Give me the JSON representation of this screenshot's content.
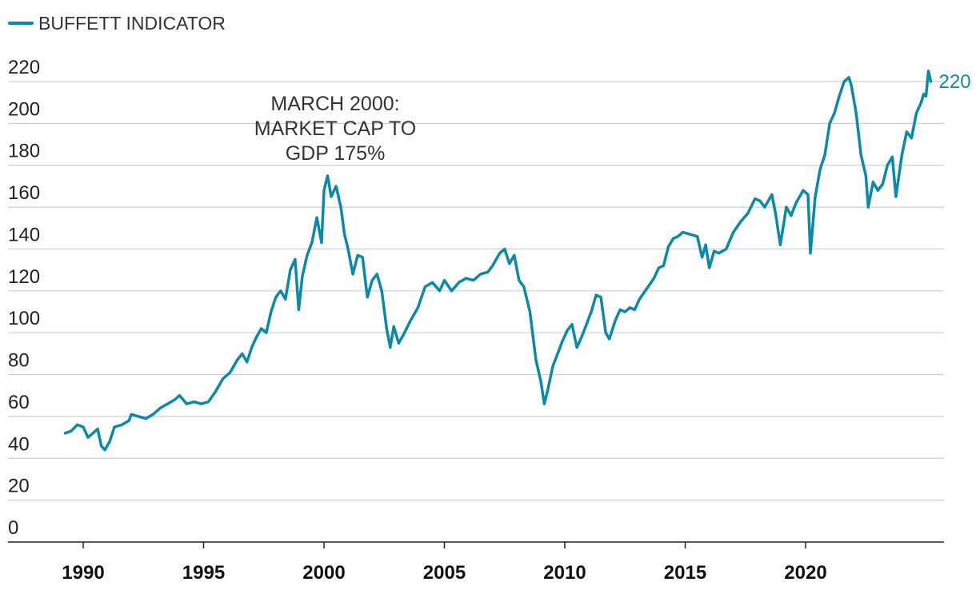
{
  "chart_data": {
    "type": "line",
    "title": "",
    "xlabel": "",
    "ylabel": "",
    "xlim": [
      1988.5,
      2025.8
    ],
    "ylim": [
      0,
      220
    ],
    "y_ticks": [
      0,
      20,
      40,
      60,
      80,
      100,
      120,
      140,
      160,
      180,
      200,
      220
    ],
    "x_ticks": [
      1990,
      1995,
      2000,
      2005,
      2010,
      2015,
      2020
    ],
    "grid": true,
    "legend": "top-left",
    "series": [
      {
        "name": "BUFFETT INDICATOR",
        "color": "#0a8aa8",
        "last_value_label": "220",
        "points": [
          [
            1989.25,
            52
          ],
          [
            1989.5,
            53
          ],
          [
            1989.75,
            56
          ],
          [
            1990.0,
            55
          ],
          [
            1990.2,
            50
          ],
          [
            1990.4,
            52
          ],
          [
            1990.6,
            54
          ],
          [
            1990.75,
            46
          ],
          [
            1990.9,
            44
          ],
          [
            1991.1,
            48
          ],
          [
            1991.3,
            55
          ],
          [
            1991.6,
            56
          ],
          [
            1991.9,
            58
          ],
          [
            1992.0,
            61
          ],
          [
            1992.3,
            60
          ],
          [
            1992.6,
            59
          ],
          [
            1992.9,
            61
          ],
          [
            1993.2,
            64
          ],
          [
            1993.5,
            66
          ],
          [
            1993.8,
            68
          ],
          [
            1994.0,
            70
          ],
          [
            1994.3,
            66
          ],
          [
            1994.6,
            67
          ],
          [
            1994.9,
            66
          ],
          [
            1995.2,
            67
          ],
          [
            1995.5,
            72
          ],
          [
            1995.8,
            78
          ],
          [
            1996.1,
            81
          ],
          [
            1996.4,
            87
          ],
          [
            1996.6,
            90
          ],
          [
            1996.8,
            86
          ],
          [
            1997.0,
            93
          ],
          [
            1997.2,
            98
          ],
          [
            1997.4,
            102
          ],
          [
            1997.6,
            100
          ],
          [
            1997.8,
            110
          ],
          [
            1998.0,
            117
          ],
          [
            1998.2,
            120
          ],
          [
            1998.4,
            116
          ],
          [
            1998.6,
            130
          ],
          [
            1998.8,
            135
          ],
          [
            1998.95,
            111
          ],
          [
            1999.1,
            127
          ],
          [
            1999.3,
            137
          ],
          [
            1999.5,
            143
          ],
          [
            1999.7,
            155
          ],
          [
            1999.9,
            143
          ],
          [
            2000.0,
            168
          ],
          [
            2000.15,
            175
          ],
          [
            2000.3,
            165
          ],
          [
            2000.5,
            170
          ],
          [
            2000.7,
            160
          ],
          [
            2000.85,
            147
          ],
          [
            2001.0,
            140
          ],
          [
            2001.2,
            128
          ],
          [
            2001.4,
            137
          ],
          [
            2001.6,
            136
          ],
          [
            2001.8,
            117
          ],
          [
            2002.0,
            125
          ],
          [
            2002.2,
            128
          ],
          [
            2002.4,
            120
          ],
          [
            2002.6,
            102
          ],
          [
            2002.75,
            93
          ],
          [
            2002.9,
            103
          ],
          [
            2003.1,
            95
          ],
          [
            2003.3,
            99
          ],
          [
            2003.6,
            106
          ],
          [
            2003.9,
            112
          ],
          [
            2004.2,
            122
          ],
          [
            2004.5,
            124
          ],
          [
            2004.8,
            120
          ],
          [
            2005.0,
            125
          ],
          [
            2005.3,
            120
          ],
          [
            2005.6,
            124
          ],
          [
            2005.9,
            126
          ],
          [
            2006.2,
            125
          ],
          [
            2006.5,
            128
          ],
          [
            2006.8,
            129
          ],
          [
            2007.0,
            132
          ],
          [
            2007.3,
            138
          ],
          [
            2007.5,
            140
          ],
          [
            2007.7,
            133
          ],
          [
            2007.9,
            137
          ],
          [
            2008.1,
            125
          ],
          [
            2008.3,
            122
          ],
          [
            2008.55,
            110
          ],
          [
            2008.8,
            87
          ],
          [
            2009.0,
            77
          ],
          [
            2009.15,
            66
          ],
          [
            2009.3,
            73
          ],
          [
            2009.5,
            84
          ],
          [
            2009.7,
            90
          ],
          [
            2009.9,
            96
          ],
          [
            2010.1,
            101
          ],
          [
            2010.3,
            104
          ],
          [
            2010.5,
            93
          ],
          [
            2010.7,
            98
          ],
          [
            2010.9,
            104
          ],
          [
            2011.1,
            110
          ],
          [
            2011.3,
            118
          ],
          [
            2011.5,
            117
          ],
          [
            2011.7,
            100
          ],
          [
            2011.85,
            97
          ],
          [
            2012.1,
            106
          ],
          [
            2012.3,
            111
          ],
          [
            2012.5,
            110
          ],
          [
            2012.7,
            112
          ],
          [
            2012.9,
            111
          ],
          [
            2013.1,
            116
          ],
          [
            2013.4,
            121
          ],
          [
            2013.7,
            126
          ],
          [
            2013.9,
            131
          ],
          [
            2014.1,
            132
          ],
          [
            2014.3,
            141
          ],
          [
            2014.5,
            145
          ],
          [
            2014.7,
            146
          ],
          [
            2014.9,
            148
          ],
          [
            2015.2,
            147
          ],
          [
            2015.5,
            146
          ],
          [
            2015.7,
            136
          ],
          [
            2015.85,
            142
          ],
          [
            2016.0,
            131
          ],
          [
            2016.2,
            139
          ],
          [
            2016.4,
            138
          ],
          [
            2016.7,
            140
          ],
          [
            2017.0,
            148
          ],
          [
            2017.3,
            153
          ],
          [
            2017.6,
            157
          ],
          [
            2017.9,
            164
          ],
          [
            2018.1,
            163
          ],
          [
            2018.3,
            160
          ],
          [
            2018.6,
            166
          ],
          [
            2018.75,
            157
          ],
          [
            2018.95,
            142
          ],
          [
            2019.2,
            160
          ],
          [
            2019.4,
            156
          ],
          [
            2019.6,
            162
          ],
          [
            2019.9,
            168
          ],
          [
            2020.1,
            166
          ],
          [
            2020.2,
            138
          ],
          [
            2020.4,
            165
          ],
          [
            2020.6,
            178
          ],
          [
            2020.8,
            185
          ],
          [
            2021.0,
            200
          ],
          [
            2021.2,
            205
          ],
          [
            2021.4,
            213
          ],
          [
            2021.6,
            220
          ],
          [
            2021.8,
            222
          ],
          [
            2021.9,
            218
          ],
          [
            2022.1,
            205
          ],
          [
            2022.3,
            185
          ],
          [
            2022.5,
            175
          ],
          [
            2022.6,
            160
          ],
          [
            2022.8,
            172
          ],
          [
            2023.0,
            168
          ],
          [
            2023.2,
            171
          ],
          [
            2023.4,
            180
          ],
          [
            2023.6,
            184
          ],
          [
            2023.75,
            165
          ],
          [
            2024.0,
            185
          ],
          [
            2024.2,
            196
          ],
          [
            2024.4,
            193
          ],
          [
            2024.6,
            205
          ],
          [
            2024.8,
            210
          ],
          [
            2024.9,
            214
          ],
          [
            2025.0,
            213
          ],
          [
            2025.1,
            225
          ],
          [
            2025.2,
            220
          ]
        ]
      }
    ],
    "annotations": [
      {
        "lines": [
          "MARCH 2000:",
          "MARKET CAP TO",
          "GDP 175%"
        ],
        "x": 2000.2,
        "y": 175
      }
    ]
  }
}
